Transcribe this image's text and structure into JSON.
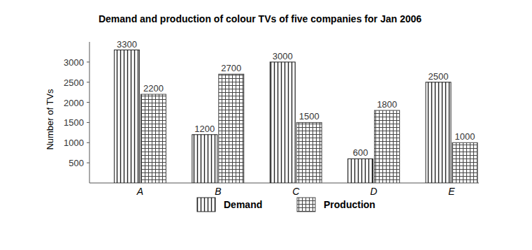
{
  "chart_data": {
    "type": "bar",
    "title": "Demand and production of colour TVs of five companies for Jan 2006",
    "y_label": "Number of TVs",
    "categories": [
      "A",
      "B",
      "C",
      "D",
      "E"
    ],
    "series": [
      {
        "name": "Demand",
        "color": "#222222",
        "values": [
          3300,
          1200,
          3000,
          600,
          2500
        ]
      },
      {
        "name": "Production",
        "color": "#444444",
        "values": [
          2200,
          2700,
          1500,
          1800,
          1000
        ]
      }
    ],
    "ylim": [
      0,
      3500
    ],
    "yticks": [
      500,
      1000,
      1500,
      2000,
      2500,
      3000
    ],
    "grid": false,
    "legend": "bottom",
    "data_labels": true
  }
}
